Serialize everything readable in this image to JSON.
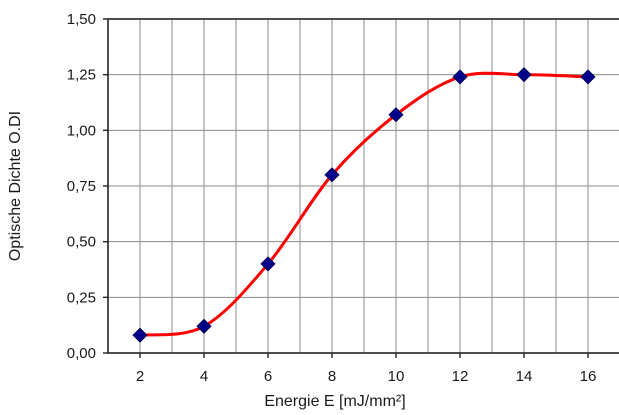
{
  "chart_data": {
    "type": "line",
    "x": [
      2,
      4,
      6,
      8,
      10,
      12,
      14,
      16
    ],
    "series": [
      {
        "values": [
          0.08,
          0.12,
          0.4,
          0.8,
          1.07,
          1.24,
          1.25,
          1.24
        ],
        "line_color": "#ff0000",
        "marker_color": "#00008b",
        "marker": "diamond"
      }
    ],
    "xlabel": "Energie E [mJ/mm²]",
    "ylabel": "Optische Dichte O.DI",
    "xlim": [
      1,
      17
    ],
    "ylim": [
      0,
      1.5
    ],
    "x_ticks": [
      "2",
      "4",
      "6",
      "8",
      "10",
      "12",
      "14",
      "16"
    ],
    "y_ticks": [
      "0,00",
      "0,25",
      "0,50",
      "0,75",
      "1,00",
      "1,25",
      "1,50"
    ],
    "grid": true,
    "smooth": true
  }
}
